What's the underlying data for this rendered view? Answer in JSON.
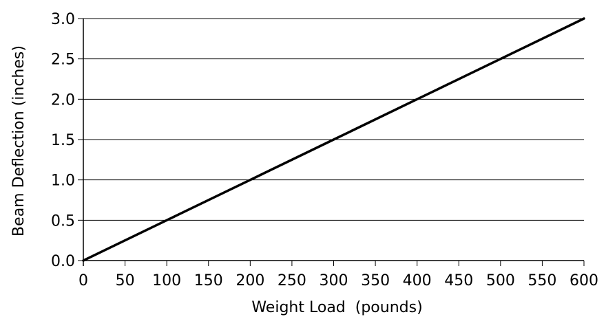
{
  "chart_data": {
    "type": "line",
    "xlabel": "Weight Load  (pounds)",
    "ylabel": "Beam Deflection (inches)",
    "xlim": [
      0,
      600
    ],
    "ylim": [
      0,
      3.0
    ],
    "x_ticks": [
      "0",
      "50",
      "100",
      "150",
      "200",
      "250",
      "300",
      "350",
      "400",
      "450",
      "500",
      "550",
      "600"
    ],
    "y_ticks": [
      "0.0",
      "0.5",
      "1.0",
      "1.5",
      "2.0",
      "2.5",
      "3.0"
    ],
    "grid": "horizontal",
    "series": [
      {
        "x": [
          0,
          100,
          200,
          300,
          400,
          500,
          600
        ],
        "y": [
          0.0,
          0.5,
          1.0,
          1.5,
          2.0,
          2.5,
          3.0
        ],
        "color": "#000000"
      }
    ]
  }
}
